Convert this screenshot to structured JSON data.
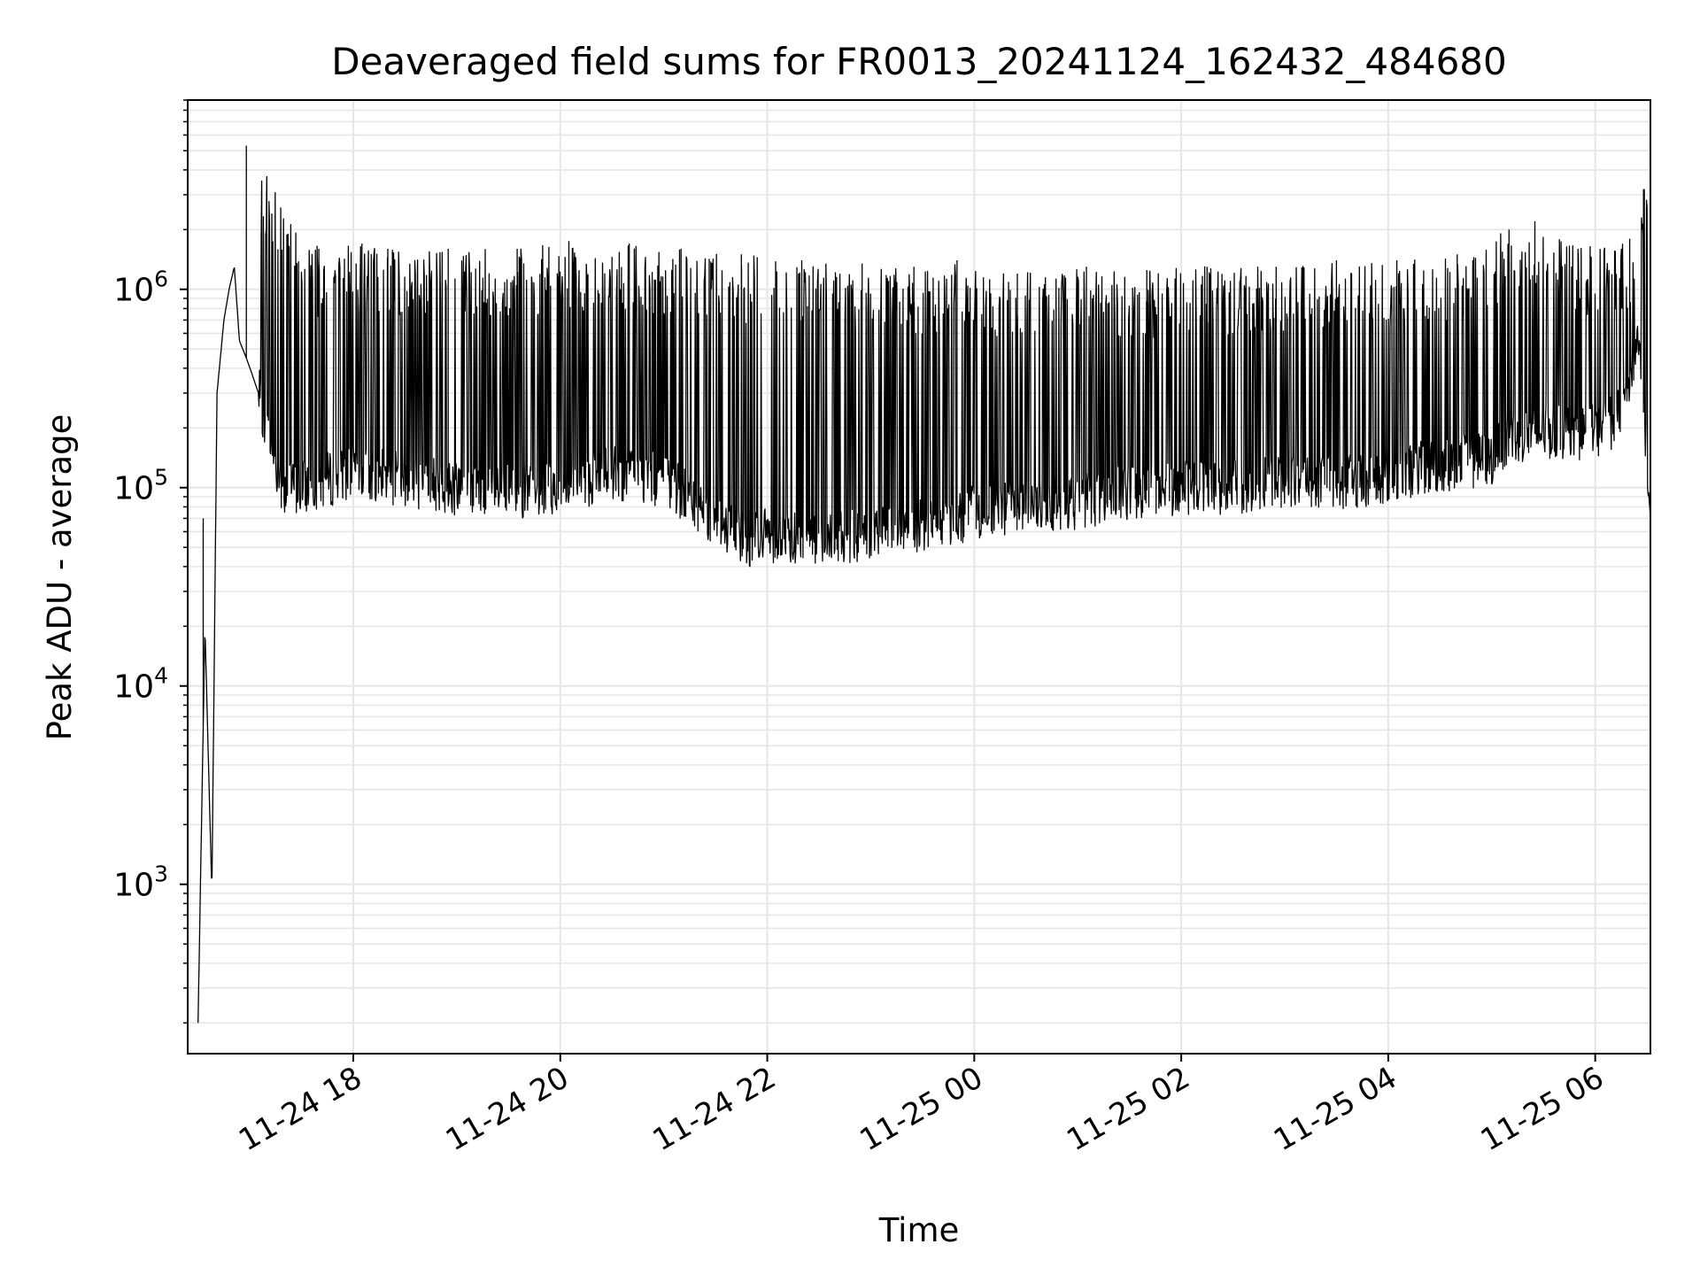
{
  "chart_data": {
    "type": "line",
    "title": "Deaveraged field sums for FR0013_20241124_162432_484680",
    "xlabel": "Time",
    "ylabel": "Peak ADU - average",
    "yscale": "log",
    "ylim": [
      140,
      9000000
    ],
    "xlim": [
      "2024-11-24 16:24",
      "2024-11-25 06:32"
    ],
    "grid": true,
    "line_color": "#000000",
    "grid_color": "#e6e6e6",
    "x_ticks": [
      {
        "value": "2024-11-24 18:00",
        "label": "11-24 18"
      },
      {
        "value": "2024-11-24 20:00",
        "label": "11-24 20"
      },
      {
        "value": "2024-11-24 22:00",
        "label": "11-24 22"
      },
      {
        "value": "2024-11-25 00:00",
        "label": "11-25 00"
      },
      {
        "value": "2024-11-25 02:00",
        "label": "11-25 02"
      },
      {
        "value": "2024-11-25 04:00",
        "label": "11-25 04"
      },
      {
        "value": "2024-11-25 06:00",
        "label": "11-25 06"
      }
    ],
    "y_ticks": [
      {
        "value": 1000,
        "base": "10",
        "exp": "3"
      },
      {
        "value": 10000,
        "base": "10",
        "exp": "4"
      },
      {
        "value": 100000,
        "base": "10",
        "exp": "5"
      },
      {
        "value": 1000000,
        "base": "10",
        "exp": "6"
      }
    ],
    "series": [
      {
        "baseline": {
          "x": [
            "2024-11-24 16:30",
            "2024-11-24 16:34",
            "2024-11-24 16:38",
            "2024-11-24 16:41",
            "2024-11-24 16:45",
            "2024-11-24 16:48",
            "2024-11-24 16:51",
            "2024-11-24 16:54",
            "2024-11-24 16:58",
            "2024-11-24 17:01",
            "2024-11-24 17:05",
            "2024-11-24 17:10",
            "2024-11-24 17:15",
            "2024-11-24 17:20",
            "2024-11-24 17:30",
            "2024-11-24 18:00",
            "2024-11-24 18:30",
            "2024-11-24 19:00",
            "2024-11-24 19:30",
            "2024-11-24 20:00",
            "2024-11-24 20:30",
            "2024-11-24 21:00",
            "2024-11-24 21:30",
            "2024-11-24 21:50",
            "2024-11-24 22:00",
            "2024-11-24 22:30",
            "2024-11-24 23:00",
            "2024-11-24 23:30",
            "2024-11-25 00:00",
            "2024-11-25 00:30",
            "2024-11-25 01:00",
            "2024-11-25 01:30",
            "2024-11-25 02:00",
            "2024-11-25 02:30",
            "2024-11-25 03:00",
            "2024-11-25 03:30",
            "2024-11-25 04:00",
            "2024-11-25 04:30",
            "2024-11-25 05:00",
            "2024-11-25 05:10",
            "2024-11-25 05:30",
            "2024-11-25 06:00",
            "2024-11-25 06:15",
            "2024-11-25 06:25",
            "2024-11-25 06:32"
          ],
          "y": [
            200,
            20000,
            900,
            300000,
            700000,
            1000000,
            1300000,
            550000,
            450000,
            380000,
            300000,
            200000,
            130000,
            100000,
            100000,
            120000,
            110000,
            100000,
            95000,
            100000,
            120000,
            110000,
            70000,
            55000,
            58000,
            55000,
            58000,
            65000,
            75000,
            80000,
            85000,
            95000,
            100000,
            100000,
            110000,
            105000,
            115000,
            130000,
            140000,
            180000,
            190000,
            190000,
            230000,
            600000,
            70000
          ]
        },
        "spikes": {
          "x": [
            "2024-11-24 16:33",
            "2024-11-24 16:58",
            "2024-11-24 17:40",
            "2024-11-24 18:05",
            "2024-11-24 18:20",
            "2024-11-24 18:55",
            "2024-11-24 19:35",
            "2024-11-24 20:05",
            "2024-11-24 20:40",
            "2024-11-24 21:10",
            "2024-11-24 21:45",
            "2024-11-24 22:20",
            "2024-11-24 22:55",
            "2024-11-24 23:25",
            "2024-11-24 23:50",
            "2024-11-25 00:25",
            "2024-11-25 01:05",
            "2024-11-25 01:40",
            "2024-11-25 02:15",
            "2024-11-25 02:55",
            "2024-11-25 03:30",
            "2024-11-25 04:05",
            "2024-11-25 04:40",
            "2024-11-25 05:10",
            "2024-11-25 05:25",
            "2024-11-25 05:50",
            "2024-11-25 06:20",
            "2024-11-25 06:28"
          ],
          "y": [
            70000,
            5300000,
            1600000,
            1700000,
            1600000,
            1600000,
            1600000,
            1750000,
            1700000,
            1600000,
            1500000,
            1400000,
            1350000,
            1300000,
            1400000,
            1200000,
            1300000,
            1250000,
            1300000,
            1300000,
            1400000,
            1400000,
            1500000,
            2000000,
            2200000,
            1600000,
            1800000,
            3200000
          ]
        }
      }
    ]
  }
}
